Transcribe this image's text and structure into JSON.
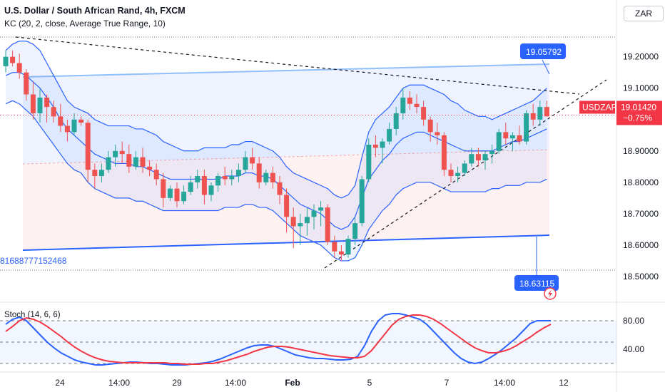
{
  "header": {
    "title": "U.S. Dollar / South African Rand, 4h, FXCM",
    "indicator": "KC (20, 2, close, Average True Range, 10)",
    "oscillator": "Stoch (14, 6, 6)"
  },
  "currency_button": "ZAR",
  "labels": {
    "symbol_tag": "USDZAR",
    "last_price": "19.01420",
    "change": "−0.75%",
    "callout_top": "19.05792",
    "callout_bottom": "18.63115",
    "left_cut_value": "81688777152468"
  },
  "colors": {
    "up": "#26a69a",
    "down": "#ef5350",
    "kc_band": "#2962ff",
    "kc_fill": "#2962ff",
    "trend_line": "#131722",
    "blue_line": "#2962ff",
    "stoch_k": "#2962ff",
    "stoch_d": "#f23645",
    "price_tag": "#f23645",
    "callout": "#2962ff"
  },
  "chart_data": [
    {
      "type": "candlestick",
      "title": "U.S. Dollar / South African Rand, 4h, FXCM",
      "y_ticks": [
        "19.20000",
        "19.10000",
        "19.00000",
        "18.90000",
        "18.80000",
        "18.70000",
        "18.60000",
        "18.50000"
      ],
      "y_tick_values": [
        19.2,
        19.1,
        19.0,
        18.9,
        18.8,
        18.7,
        18.6,
        18.5
      ],
      "x_ticks": [
        "24",
        "14:00",
        "29",
        "14:00",
        "Feb",
        "5",
        "7",
        "14:00",
        "12"
      ],
      "ylim": [
        18.45,
        19.29
      ],
      "last_price": 19.0142,
      "candles": [
        [
          19.17,
          19.22,
          19.15,
          19.2
        ],
        [
          19.2,
          19.22,
          19.17,
          19.18
        ],
        [
          19.18,
          19.21,
          19.13,
          19.15
        ],
        [
          19.15,
          19.16,
          19.06,
          19.08
        ],
        [
          19.08,
          19.12,
          19.0,
          19.02
        ],
        [
          19.02,
          19.1,
          18.99,
          19.07
        ],
        [
          19.07,
          19.08,
          18.99,
          19.04
        ],
        [
          19.04,
          19.06,
          18.99,
          19.01
        ],
        [
          19.01,
          19.05,
          18.96,
          18.98
        ],
        [
          18.98,
          19.0,
          18.93,
          18.96
        ],
        [
          18.96,
          19.02,
          18.95,
          19.0
        ],
        [
          19.0,
          19.01,
          18.98,
          18.99
        ],
        [
          18.99,
          19.0,
          18.8,
          18.84
        ],
        [
          18.84,
          18.86,
          18.78,
          18.82
        ],
        [
          18.82,
          18.86,
          18.8,
          18.84
        ],
        [
          18.84,
          18.9,
          18.83,
          18.88
        ],
        [
          18.88,
          18.92,
          18.85,
          18.9
        ],
        [
          18.9,
          18.93,
          18.86,
          18.89
        ],
        [
          18.89,
          18.92,
          18.83,
          18.85
        ],
        [
          18.85,
          18.9,
          18.84,
          18.88
        ],
        [
          18.88,
          18.91,
          18.83,
          18.85
        ],
        [
          18.85,
          18.87,
          18.82,
          18.84
        ],
        [
          18.84,
          18.86,
          18.79,
          18.81
        ],
        [
          18.81,
          18.83,
          18.72,
          18.75
        ],
        [
          18.75,
          18.79,
          18.74,
          18.78
        ],
        [
          18.78,
          18.8,
          18.72,
          18.74
        ],
        [
          18.74,
          18.79,
          18.73,
          18.77
        ],
        [
          18.77,
          18.82,
          18.76,
          18.8
        ],
        [
          18.8,
          18.84,
          18.78,
          18.82
        ],
        [
          18.82,
          18.84,
          18.73,
          18.76
        ],
        [
          18.76,
          18.8,
          18.74,
          18.79
        ],
        [
          18.79,
          18.83,
          18.77,
          18.82
        ],
        [
          18.82,
          18.85,
          18.79,
          18.81
        ],
        [
          18.81,
          18.84,
          18.79,
          18.82
        ],
        [
          18.82,
          18.86,
          18.8,
          18.84
        ],
        [
          18.84,
          18.9,
          18.83,
          18.88
        ],
        [
          18.88,
          18.91,
          18.84,
          18.86
        ],
        [
          18.86,
          18.88,
          18.78,
          18.8
        ],
        [
          18.8,
          18.84,
          18.79,
          18.83
        ],
        [
          18.83,
          18.85,
          18.78,
          18.8
        ],
        [
          18.8,
          18.82,
          18.73,
          18.76
        ],
        [
          18.76,
          18.78,
          18.64,
          18.69
        ],
        [
          18.69,
          18.72,
          18.59,
          18.66
        ],
        [
          18.66,
          18.7,
          18.6,
          18.67
        ],
        [
          18.67,
          18.72,
          18.63,
          18.69
        ],
        [
          18.69,
          18.73,
          18.65,
          18.71
        ],
        [
          18.71,
          18.74,
          18.66,
          18.72
        ],
        [
          18.72,
          18.73,
          18.6,
          18.61
        ],
        [
          18.61,
          18.63,
          18.56,
          18.58
        ],
        [
          18.58,
          18.6,
          18.55,
          18.57
        ],
        [
          18.57,
          18.63,
          18.56,
          18.62
        ],
        [
          18.62,
          18.69,
          18.6,
          18.67
        ],
        [
          18.67,
          18.82,
          18.66,
          18.81
        ],
        [
          18.81,
          18.94,
          18.8,
          18.92
        ],
        [
          18.92,
          18.95,
          18.88,
          18.91
        ],
        [
          18.91,
          18.94,
          18.86,
          18.93
        ],
        [
          18.93,
          18.99,
          18.92,
          18.97
        ],
        [
          18.97,
          19.04,
          18.95,
          19.02
        ],
        [
          19.02,
          19.1,
          19.0,
          19.07
        ],
        [
          19.07,
          19.09,
          19.03,
          19.05
        ],
        [
          19.05,
          19.08,
          19.02,
          19.04
        ],
        [
          19.04,
          19.06,
          18.98,
          19.0
        ],
        [
          19.0,
          19.01,
          18.93,
          18.96
        ],
        [
          18.96,
          18.99,
          18.92,
          18.95
        ],
        [
          18.95,
          18.96,
          18.82,
          18.84
        ],
        [
          18.84,
          18.86,
          18.8,
          18.82
        ],
        [
          18.82,
          18.85,
          18.8,
          18.83
        ],
        [
          18.83,
          18.87,
          18.82,
          18.86
        ],
        [
          18.86,
          18.91,
          18.85,
          18.89
        ],
        [
          18.89,
          18.91,
          18.85,
          18.87
        ],
        [
          18.87,
          18.9,
          18.84,
          18.89
        ],
        [
          18.89,
          18.92,
          18.86,
          18.9
        ],
        [
          18.9,
          18.97,
          18.89,
          18.96
        ],
        [
          18.96,
          18.99,
          18.92,
          18.94
        ],
        [
          18.94,
          18.96,
          18.9,
          18.95
        ],
        [
          18.95,
          18.98,
          18.92,
          18.93
        ],
        [
          18.93,
          19.03,
          18.92,
          19.02
        ],
        [
          19.02,
          19.05,
          18.98,
          19.0
        ],
        [
          19.0,
          19.06,
          18.98,
          19.04
        ],
        [
          19.04,
          19.06,
          19.01,
          19.01
        ]
      ],
      "keltner_upper": [
        19.22,
        19.24,
        19.25,
        19.25,
        19.24,
        19.22,
        19.18,
        19.14,
        19.1,
        19.06,
        19.04,
        19.03,
        19.02,
        19.0,
        18.99,
        18.98,
        18.98,
        18.98,
        18.98,
        18.97,
        18.97,
        18.96,
        18.95,
        18.93,
        18.92,
        18.91,
        18.9,
        18.9,
        18.9,
        18.91,
        18.91,
        18.91,
        18.91,
        18.92,
        18.92,
        18.93,
        18.93,
        18.92,
        18.91,
        18.9,
        18.88,
        18.85,
        18.83,
        18.82,
        18.81,
        18.8,
        18.79,
        18.78,
        18.76,
        18.75,
        18.76,
        18.79,
        18.88,
        18.96,
        19.0,
        19.02,
        19.04,
        19.07,
        19.1,
        19.11,
        19.11,
        19.11,
        19.1,
        19.09,
        19.08,
        19.06,
        19.05,
        19.03,
        19.02,
        19.01,
        19.01,
        19.0,
        19.01,
        19.02,
        19.03,
        19.04,
        19.05,
        19.06,
        19.08,
        19.1
      ],
      "keltner_basis": [
        19.14,
        19.15,
        19.15,
        19.14,
        19.12,
        19.1,
        19.07,
        19.04,
        19.0,
        18.97,
        18.95,
        18.93,
        18.91,
        18.89,
        18.88,
        18.87,
        18.86,
        18.86,
        18.86,
        18.85,
        18.85,
        18.84,
        18.83,
        18.82,
        18.81,
        18.81,
        18.81,
        18.81,
        18.81,
        18.81,
        18.81,
        18.81,
        18.82,
        18.82,
        18.82,
        18.83,
        18.83,
        18.82,
        18.82,
        18.81,
        18.79,
        18.77,
        18.75,
        18.73,
        18.72,
        18.71,
        18.7,
        18.68,
        18.66,
        18.65,
        18.66,
        18.69,
        18.75,
        18.81,
        18.84,
        18.87,
        18.89,
        18.92,
        18.94,
        18.95,
        18.96,
        18.96,
        18.95,
        18.94,
        18.93,
        18.92,
        18.91,
        18.9,
        18.9,
        18.9,
        18.9,
        18.9,
        18.91,
        18.92,
        18.93,
        18.93,
        18.94,
        18.95,
        18.96,
        18.97
      ],
      "keltner_lower": [
        19.05,
        19.06,
        19.05,
        19.03,
        19.01,
        18.98,
        18.95,
        18.92,
        18.89,
        18.86,
        18.84,
        18.83,
        18.8,
        18.78,
        18.77,
        18.76,
        18.75,
        18.75,
        18.75,
        18.74,
        18.74,
        18.73,
        18.72,
        18.71,
        18.71,
        18.71,
        18.71,
        18.71,
        18.71,
        18.71,
        18.71,
        18.71,
        18.72,
        18.72,
        18.72,
        18.73,
        18.73,
        18.72,
        18.72,
        18.71,
        18.69,
        18.67,
        18.65,
        18.63,
        18.62,
        18.61,
        18.6,
        18.58,
        18.56,
        18.55,
        18.55,
        18.56,
        18.6,
        18.65,
        18.68,
        18.71,
        18.73,
        18.76,
        18.78,
        18.79,
        18.8,
        18.8,
        18.8,
        18.79,
        18.78,
        18.77,
        18.77,
        18.77,
        18.77,
        18.77,
        18.77,
        18.78,
        18.78,
        18.79,
        18.79,
        18.79,
        18.8,
        18.8,
        18.8,
        18.81
      ]
    },
    {
      "type": "line",
      "title": "Stoch (14, 6, 6)",
      "y_ticks": [
        "80.00",
        "40.00"
      ],
      "y_tick_values": [
        80,
        40
      ],
      "ylim": [
        10,
        100
      ],
      "series": [
        {
          "values": [
            75,
            82,
            85,
            80,
            70,
            60,
            50,
            42,
            35,
            30,
            25,
            22,
            20,
            18,
            18,
            19,
            20,
            21,
            22,
            22,
            21,
            20,
            20,
            19,
            18,
            18,
            18,
            19,
            20,
            21,
            23,
            26,
            30,
            34,
            38,
            42,
            45,
            46,
            46,
            44,
            40,
            36,
            32,
            30,
            28,
            27,
            27,
            26,
            25,
            25,
            26,
            30,
            45,
            65,
            80,
            88,
            90,
            90,
            88,
            85,
            82,
            75,
            65,
            55,
            45,
            35,
            27,
            22,
            20,
            22,
            27,
            33,
            40,
            48,
            56,
            66,
            76,
            80,
            80,
            80
          ]
        },
        {
          "values": [
            65,
            72,
            80,
            84,
            82,
            78,
            72,
            65,
            58,
            50,
            43,
            37,
            32,
            28,
            25,
            23,
            22,
            21,
            21,
            21,
            21,
            21,
            21,
            21,
            20,
            20,
            19,
            19,
            19,
            20,
            20,
            22,
            24,
            27,
            30,
            33,
            37,
            40,
            43,
            44,
            44,
            43,
            41,
            39,
            37,
            35,
            33,
            31,
            30,
            29,
            28,
            28,
            30,
            38,
            50,
            62,
            74,
            82,
            86,
            88,
            88,
            86,
            82,
            76,
            69,
            62,
            55,
            48,
            42,
            38,
            35,
            35,
            37,
            40,
            45,
            51,
            57,
            64,
            70,
            75
          ]
        }
      ]
    }
  ]
}
